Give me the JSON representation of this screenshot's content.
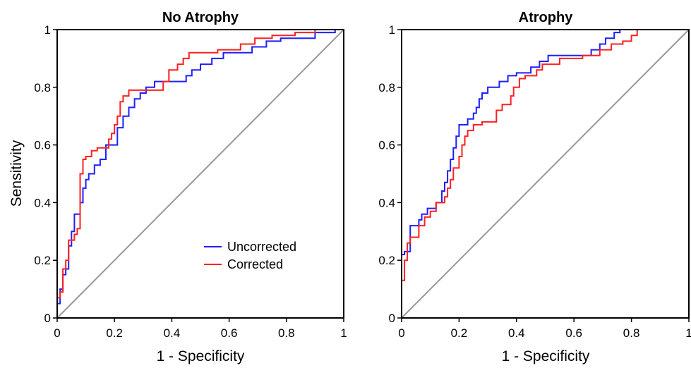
{
  "colors": {
    "uncorrected": "#1f1fff",
    "corrected": "#ff2020",
    "diagonal": "#999999"
  },
  "chart_data": [
    {
      "type": "line",
      "title": "No Atrophy",
      "xlabel": "1 - Specificity",
      "ylabel": "Sensitivity",
      "xlim": [
        0,
        1
      ],
      "ylim": [
        0,
        1
      ],
      "xticks": [
        "0",
        "0.2",
        "0.4",
        "0.6",
        "0.8",
        "1"
      ],
      "yticks": [
        "0",
        "0.2",
        "0.4",
        "0.6",
        "0.8",
        "1"
      ],
      "grid": false,
      "legend": {
        "position": "lower-right",
        "entries": [
          "Uncorrected",
          "Corrected"
        ]
      },
      "series": [
        {
          "name": "Uncorrected",
          "color": "#1f1fff",
          "points": [
            [
              0,
              0
            ],
            [
              0,
              0.05
            ],
            [
              0.01,
              0.05
            ],
            [
              0.01,
              0.1
            ],
            [
              0.02,
              0.1
            ],
            [
              0.02,
              0.15
            ],
            [
              0.03,
              0.15
            ],
            [
              0.03,
              0.17
            ],
            [
              0.04,
              0.17
            ],
            [
              0.04,
              0.25
            ],
            [
              0.05,
              0.25
            ],
            [
              0.05,
              0.3
            ],
            [
              0.06,
              0.3
            ],
            [
              0.06,
              0.36
            ],
            [
              0.08,
              0.36
            ],
            [
              0.08,
              0.4
            ],
            [
              0.09,
              0.4
            ],
            [
              0.09,
              0.45
            ],
            [
              0.1,
              0.45
            ],
            [
              0.1,
              0.48
            ],
            [
              0.11,
              0.48
            ],
            [
              0.11,
              0.5
            ],
            [
              0.13,
              0.5
            ],
            [
              0.13,
              0.53
            ],
            [
              0.15,
              0.53
            ],
            [
              0.15,
              0.55
            ],
            [
              0.17,
              0.55
            ],
            [
              0.17,
              0.6
            ],
            [
              0.21,
              0.6
            ],
            [
              0.21,
              0.66
            ],
            [
              0.23,
              0.66
            ],
            [
              0.23,
              0.7
            ],
            [
              0.25,
              0.7
            ],
            [
              0.25,
              0.73
            ],
            [
              0.27,
              0.73
            ],
            [
              0.27,
              0.76
            ],
            [
              0.29,
              0.76
            ],
            [
              0.29,
              0.78
            ],
            [
              0.31,
              0.78
            ],
            [
              0.31,
              0.8
            ],
            [
              0.34,
              0.8
            ],
            [
              0.34,
              0.82
            ],
            [
              0.45,
              0.82
            ],
            [
              0.45,
              0.84
            ],
            [
              0.47,
              0.84
            ],
            [
              0.47,
              0.86
            ],
            [
              0.5,
              0.86
            ],
            [
              0.5,
              0.88
            ],
            [
              0.54,
              0.88
            ],
            [
              0.54,
              0.9
            ],
            [
              0.58,
              0.9
            ],
            [
              0.58,
              0.92
            ],
            [
              0.68,
              0.92
            ],
            [
              0.68,
              0.94
            ],
            [
              0.73,
              0.94
            ],
            [
              0.73,
              0.96
            ],
            [
              0.78,
              0.96
            ],
            [
              0.78,
              0.97
            ],
            [
              0.9,
              0.97
            ],
            [
              0.9,
              0.99
            ],
            [
              0.97,
              0.99
            ],
            [
              0.97,
              1
            ],
            [
              1,
              1
            ]
          ]
        },
        {
          "name": "Corrected",
          "color": "#ff2020",
          "points": [
            [
              0,
              0
            ],
            [
              0,
              0.07
            ],
            [
              0.01,
              0.07
            ],
            [
              0.01,
              0.09
            ],
            [
              0.02,
              0.09
            ],
            [
              0.02,
              0.17
            ],
            [
              0.03,
              0.17
            ],
            [
              0.03,
              0.2
            ],
            [
              0.04,
              0.2
            ],
            [
              0.04,
              0.27
            ],
            [
              0.06,
              0.27
            ],
            [
              0.06,
              0.29
            ],
            [
              0.07,
              0.29
            ],
            [
              0.07,
              0.31
            ],
            [
              0.08,
              0.31
            ],
            [
              0.08,
              0.5
            ],
            [
              0.09,
              0.5
            ],
            [
              0.09,
              0.55
            ],
            [
              0.1,
              0.55
            ],
            [
              0.1,
              0.56
            ],
            [
              0.12,
              0.56
            ],
            [
              0.12,
              0.58
            ],
            [
              0.14,
              0.58
            ],
            [
              0.14,
              0.59
            ],
            [
              0.18,
              0.59
            ],
            [
              0.18,
              0.62
            ],
            [
              0.19,
              0.62
            ],
            [
              0.19,
              0.64
            ],
            [
              0.2,
              0.64
            ],
            [
              0.2,
              0.67
            ],
            [
              0.21,
              0.67
            ],
            [
              0.21,
              0.7
            ],
            [
              0.22,
              0.7
            ],
            [
              0.22,
              0.75
            ],
            [
              0.23,
              0.75
            ],
            [
              0.23,
              0.77
            ],
            [
              0.25,
              0.77
            ],
            [
              0.25,
              0.79
            ],
            [
              0.37,
              0.79
            ],
            [
              0.37,
              0.82
            ],
            [
              0.39,
              0.82
            ],
            [
              0.39,
              0.86
            ],
            [
              0.42,
              0.86
            ],
            [
              0.42,
              0.88
            ],
            [
              0.44,
              0.88
            ],
            [
              0.44,
              0.9
            ],
            [
              0.46,
              0.9
            ],
            [
              0.46,
              0.92
            ],
            [
              0.56,
              0.92
            ],
            [
              0.56,
              0.93
            ],
            [
              0.64,
              0.93
            ],
            [
              0.64,
              0.95
            ],
            [
              0.69,
              0.95
            ],
            [
              0.69,
              0.97
            ],
            [
              0.75,
              0.97
            ],
            [
              0.75,
              0.98
            ],
            [
              0.83,
              0.98
            ],
            [
              0.83,
              0.99
            ],
            [
              0.9,
              0.99
            ],
            [
              0.9,
              1
            ],
            [
              1,
              1
            ]
          ]
        }
      ]
    },
    {
      "type": "line",
      "title": "Atrophy",
      "xlabel": "1 - Specificity",
      "ylabel": "",
      "xlim": [
        0,
        1
      ],
      "ylim": [
        0,
        1
      ],
      "xticks": [
        "0",
        "0.2",
        "0.4",
        "0.6",
        "0.8",
        "1"
      ],
      "yticks": [
        "0",
        "0.2",
        "0.4",
        "0.6",
        "0.8",
        "1"
      ],
      "grid": false,
      "series": [
        {
          "name": "Uncorrected",
          "color": "#1f1fff",
          "points": [
            [
              0,
              0
            ],
            [
              0,
              0.22
            ],
            [
              0.01,
              0.22
            ],
            [
              0.01,
              0.23
            ],
            [
              0.03,
              0.23
            ],
            [
              0.03,
              0.32
            ],
            [
              0.06,
              0.32
            ],
            [
              0.06,
              0.34
            ],
            [
              0.07,
              0.34
            ],
            [
              0.07,
              0.36
            ],
            [
              0.09,
              0.36
            ],
            [
              0.09,
              0.38
            ],
            [
              0.12,
              0.38
            ],
            [
              0.12,
              0.4
            ],
            [
              0.14,
              0.4
            ],
            [
              0.14,
              0.44
            ],
            [
              0.15,
              0.44
            ],
            [
              0.15,
              0.47
            ],
            [
              0.16,
              0.47
            ],
            [
              0.16,
              0.51
            ],
            [
              0.17,
              0.51
            ],
            [
              0.17,
              0.55
            ],
            [
              0.18,
              0.55
            ],
            [
              0.18,
              0.59
            ],
            [
              0.19,
              0.59
            ],
            [
              0.19,
              0.63
            ],
            [
              0.2,
              0.63
            ],
            [
              0.2,
              0.67
            ],
            [
              0.23,
              0.67
            ],
            [
              0.23,
              0.69
            ],
            [
              0.25,
              0.69
            ],
            [
              0.25,
              0.71
            ],
            [
              0.26,
              0.71
            ],
            [
              0.26,
              0.73
            ],
            [
              0.27,
              0.73
            ],
            [
              0.27,
              0.76
            ],
            [
              0.28,
              0.76
            ],
            [
              0.28,
              0.78
            ],
            [
              0.3,
              0.78
            ],
            [
              0.3,
              0.8
            ],
            [
              0.34,
              0.8
            ],
            [
              0.34,
              0.82
            ],
            [
              0.37,
              0.82
            ],
            [
              0.37,
              0.84
            ],
            [
              0.4,
              0.84
            ],
            [
              0.4,
              0.85
            ],
            [
              0.45,
              0.85
            ],
            [
              0.45,
              0.87
            ],
            [
              0.48,
              0.87
            ],
            [
              0.48,
              0.89
            ],
            [
              0.51,
              0.89
            ],
            [
              0.51,
              0.91
            ],
            [
              0.66,
              0.91
            ],
            [
              0.66,
              0.93
            ],
            [
              0.69,
              0.93
            ],
            [
              0.69,
              0.95
            ],
            [
              0.71,
              0.95
            ],
            [
              0.71,
              0.97
            ],
            [
              0.74,
              0.97
            ],
            [
              0.74,
              0.99
            ],
            [
              0.76,
              0.99
            ],
            [
              0.76,
              1
            ],
            [
              1,
              1
            ]
          ]
        },
        {
          "name": "Corrected",
          "color": "#ff2020",
          "points": [
            [
              0,
              0
            ],
            [
              0,
              0.13
            ],
            [
              0.01,
              0.13
            ],
            [
              0.01,
              0.2
            ],
            [
              0.02,
              0.2
            ],
            [
              0.02,
              0.26
            ],
            [
              0.03,
              0.26
            ],
            [
              0.03,
              0.28
            ],
            [
              0.06,
              0.28
            ],
            [
              0.06,
              0.32
            ],
            [
              0.08,
              0.32
            ],
            [
              0.08,
              0.35
            ],
            [
              0.1,
              0.35
            ],
            [
              0.1,
              0.37
            ],
            [
              0.12,
              0.37
            ],
            [
              0.12,
              0.4
            ],
            [
              0.15,
              0.4
            ],
            [
              0.15,
              0.42
            ],
            [
              0.16,
              0.42
            ],
            [
              0.16,
              0.45
            ],
            [
              0.17,
              0.45
            ],
            [
              0.17,
              0.48
            ],
            [
              0.18,
              0.48
            ],
            [
              0.18,
              0.52
            ],
            [
              0.2,
              0.52
            ],
            [
              0.2,
              0.56
            ],
            [
              0.21,
              0.56
            ],
            [
              0.21,
              0.6
            ],
            [
              0.22,
              0.6
            ],
            [
              0.22,
              0.63
            ],
            [
              0.23,
              0.63
            ],
            [
              0.23,
              0.65
            ],
            [
              0.25,
              0.65
            ],
            [
              0.25,
              0.67
            ],
            [
              0.28,
              0.67
            ],
            [
              0.28,
              0.68
            ],
            [
              0.33,
              0.68
            ],
            [
              0.33,
              0.72
            ],
            [
              0.35,
              0.72
            ],
            [
              0.35,
              0.74
            ],
            [
              0.38,
              0.74
            ],
            [
              0.38,
              0.77
            ],
            [
              0.39,
              0.77
            ],
            [
              0.39,
              0.8
            ],
            [
              0.41,
              0.8
            ],
            [
              0.41,
              0.83
            ],
            [
              0.43,
              0.83
            ],
            [
              0.43,
              0.84
            ],
            [
              0.47,
              0.84
            ],
            [
              0.47,
              0.86
            ],
            [
              0.49,
              0.86
            ],
            [
              0.49,
              0.88
            ],
            [
              0.55,
              0.88
            ],
            [
              0.55,
              0.9
            ],
            [
              0.63,
              0.9
            ],
            [
              0.63,
              0.91
            ],
            [
              0.69,
              0.91
            ],
            [
              0.69,
              0.93
            ],
            [
              0.73,
              0.93
            ],
            [
              0.73,
              0.95
            ],
            [
              0.77,
              0.95
            ],
            [
              0.77,
              0.96
            ],
            [
              0.8,
              0.96
            ],
            [
              0.8,
              0.98
            ],
            [
              0.82,
              0.98
            ],
            [
              0.82,
              1
            ],
            [
              1,
              1
            ]
          ]
        }
      ]
    }
  ]
}
